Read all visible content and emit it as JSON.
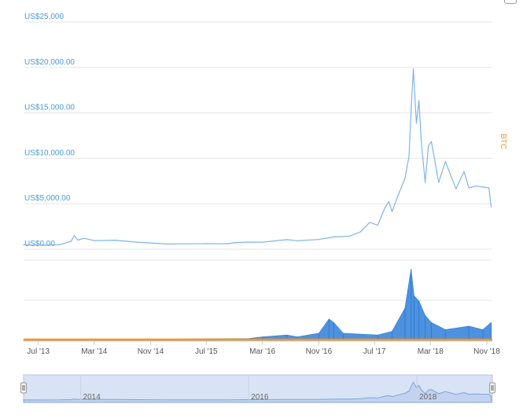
{
  "colors": {
    "price_line": "#7cb5ec",
    "volume_bars": "#2f7ed8",
    "btc_line": "#f7931a",
    "y_tick_text": "#4a9ad8",
    "grid": "#e6e6e6",
    "navigator_fill": "#d8e3f5",
    "navigator_line": "#7ea4dc"
  },
  "chart_data": {
    "type": "line",
    "y_ticks": [
      "US$0.00",
      "US$5,000.00",
      "US$10,000.00",
      "US$15,000.00",
      "US$20,000.00",
      "US$25,000"
    ],
    "y_tick_values": [
      0,
      5000,
      10000,
      15000,
      20000,
      25000
    ],
    "ylim": [
      0,
      25000
    ],
    "right_axis_label": "BTC",
    "x_ticks": [
      "Jul '13",
      "Mar '14",
      "Nov '14",
      "Jul '15",
      "Mar '16",
      "Nov '16",
      "Jul '17",
      "Mar '18",
      "Nov '18"
    ],
    "x_tick_dates": [
      "2013-07-01",
      "2014-03-01",
      "2014-11-01",
      "2015-07-01",
      "2016-03-01",
      "2016-11-01",
      "2017-07-01",
      "2018-03-01",
      "2018-11-01"
    ],
    "xlim": [
      "2013-04-28",
      "2018-11-25"
    ],
    "grid": true,
    "series": [
      {
        "kind": "price",
        "x": [
          "2013-04-28",
          "2013-07-01",
          "2013-10-01",
          "2013-11-20",
          "2013-12-04",
          "2013-12-20",
          "2014-01-15",
          "2014-03-01",
          "2014-06-01",
          "2014-09-01",
          "2014-11-01",
          "2015-01-15",
          "2015-04-01",
          "2015-07-01",
          "2015-10-01",
          "2015-11-05",
          "2016-01-01",
          "2016-03-01",
          "2016-06-15",
          "2016-08-01",
          "2016-11-01",
          "2017-01-05",
          "2017-02-15",
          "2017-03-15",
          "2017-05-01",
          "2017-06-10",
          "2017-07-15",
          "2017-08-15",
          "2017-09-01",
          "2017-09-15",
          "2017-10-15",
          "2017-11-10",
          "2017-11-28",
          "2017-12-07",
          "2017-12-17",
          "2017-12-30",
          "2018-01-10",
          "2018-01-20",
          "2018-02-06",
          "2018-02-20",
          "2018-03-05",
          "2018-04-06",
          "2018-05-05",
          "2018-06-20",
          "2018-07-25",
          "2018-08-15",
          "2018-09-15",
          "2018-10-15",
          "2018-11-10",
          "2018-11-20"
        ],
        "y": [
          140,
          90,
          150,
          500,
          1150,
          650,
          850,
          600,
          640,
          420,
          340,
          220,
          240,
          260,
          250,
          380,
          430,
          420,
          700,
          580,
          720,
          1000,
          1050,
          1100,
          1550,
          2600,
          2300,
          4200,
          4900,
          3800,
          5800,
          7400,
          9900,
          15000,
          19500,
          13500,
          16000,
          11500,
          7000,
          11000,
          11500,
          7000,
          9300,
          6300,
          8200,
          6400,
          6600,
          6500,
          6400,
          4300
        ]
      },
      {
        "kind": "volume",
        "x": [
          "2013-04-28",
          "2016-01-01",
          "2016-03-01",
          "2016-06-15",
          "2016-08-01",
          "2016-11-01",
          "2016-12-15",
          "2017-01-05",
          "2017-02-15",
          "2017-07-15",
          "2017-09-15",
          "2017-11-10",
          "2017-12-07",
          "2017-12-20",
          "2018-01-10",
          "2018-02-06",
          "2018-03-05",
          "2018-05-05",
          "2018-08-15",
          "2018-10-15",
          "2018-11-20"
        ],
        "y": [
          0.1,
          1,
          2,
          3,
          2,
          4,
          12,
          10,
          4,
          3,
          5,
          18,
          40,
          25,
          22,
          14,
          10,
          6,
          8,
          6,
          10
        ]
      },
      {
        "kind": "btc_flat",
        "x": [
          "2013-04-28",
          "2018-11-25"
        ],
        "y": [
          0,
          0
        ]
      }
    ]
  },
  "navigator": {
    "year_labels": [
      "2014",
      "2016",
      "2018"
    ],
    "year_dates": [
      "2014-01-01",
      "2016-01-01",
      "2018-01-01"
    ]
  }
}
